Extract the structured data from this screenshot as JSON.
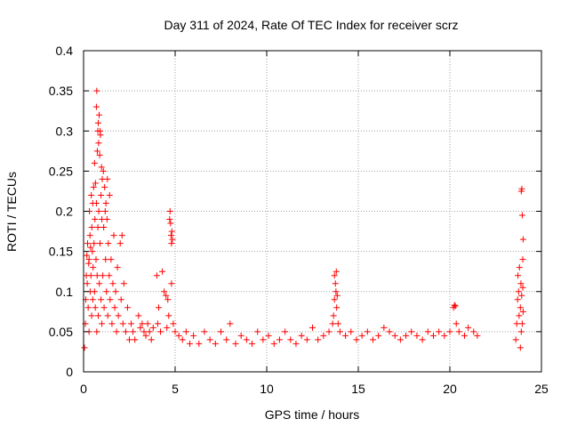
{
  "chart_data": {
    "type": "scatter",
    "title": "Day 311 of 2024, Rate Of TEC Index for receiver scrz",
    "xlabel": "GPS time / hours",
    "ylabel": "ROTI / TECUs",
    "xlim": [
      0,
      25
    ],
    "ylim": [
      0,
      0.4
    ],
    "xticks": [
      0,
      5,
      10,
      15,
      20,
      25
    ],
    "xtick_labels": [
      "0",
      "5",
      "10",
      "15",
      "20",
      "25"
    ],
    "yticks": [
      0,
      0.05,
      0.1,
      0.15,
      0.2,
      0.25,
      0.3,
      0.35,
      0.4
    ],
    "ytick_labels": [
      "0",
      "0.05",
      "0.1",
      "0.15",
      "0.2",
      "0.25",
      "0.3",
      "0.35",
      "0.4"
    ],
    "grid": true,
    "marker": "+",
    "marker_color": "#ff0000",
    "series": [
      {
        "name": "ROTI",
        "points": [
          [
            0.05,
            0.03
          ],
          [
            0.1,
            0.06
          ],
          [
            0.12,
            0.09
          ],
          [
            0.15,
            0.12
          ],
          [
            0.18,
            0.145
          ],
          [
            0.2,
            0.11
          ],
          [
            0.22,
            0.16
          ],
          [
            0.25,
            0.08
          ],
          [
            0.28,
            0.135
          ],
          [
            0.3,
            0.05
          ],
          [
            0.3,
            0.14
          ],
          [
            0.32,
            0.2
          ],
          [
            0.35,
            0.17
          ],
          [
            0.36,
            0.1
          ],
          [
            0.38,
            0.155
          ],
          [
            0.4,
            0.12
          ],
          [
            0.42,
            0.22
          ],
          [
            0.44,
            0.07
          ],
          [
            0.45,
            0.18
          ],
          [
            0.48,
            0.15
          ],
          [
            0.5,
            0.21
          ],
          [
            0.5,
            0.09
          ],
          [
            0.52,
            0.13
          ],
          [
            0.55,
            0.23
          ],
          [
            0.57,
            0.16
          ],
          [
            0.6,
            0.1
          ],
          [
            0.6,
            0.26
          ],
          [
            0.62,
            0.19
          ],
          [
            0.64,
            0.08
          ],
          [
            0.65,
            0.235
          ],
          [
            0.68,
            0.14
          ],
          [
            0.7,
            0.33
          ],
          [
            0.7,
            0.21
          ],
          [
            0.72,
            0.05
          ],
          [
            0.72,
            0.35
          ],
          [
            0.74,
            0.12
          ],
          [
            0.75,
            0.275
          ],
          [
            0.78,
            0.3
          ],
          [
            0.78,
            0.18
          ],
          [
            0.8,
            0.31
          ],
          [
            0.8,
            0.07
          ],
          [
            0.82,
            0.285
          ],
          [
            0.83,
            0.2
          ],
          [
            0.85,
            0.32
          ],
          [
            0.86,
            0.11
          ],
          [
            0.88,
            0.27
          ],
          [
            0.9,
            0.3
          ],
          [
            0.9,
            0.16
          ],
          [
            0.92,
            0.295
          ],
          [
            0.95,
            0.22
          ],
          [
            0.95,
            0.09
          ],
          [
            0.98,
            0.255
          ],
          [
            1.0,
            0.19
          ],
          [
            1.0,
            0.06
          ],
          [
            1.02,
            0.24
          ],
          [
            1.05,
            0.12
          ],
          [
            1.08,
            0.25
          ],
          [
            1.1,
            0.18
          ],
          [
            1.12,
            0.08
          ],
          [
            1.15,
            0.23
          ],
          [
            1.18,
            0.2
          ],
          [
            1.2,
            0.14
          ],
          [
            1.22,
            0.21
          ],
          [
            1.25,
            0.1
          ],
          [
            1.28,
            0.19
          ],
          [
            1.3,
            0.24
          ],
          [
            1.32,
            0.07
          ],
          [
            1.35,
            0.16
          ],
          [
            1.4,
            0.12
          ],
          [
            1.42,
            0.22
          ],
          [
            1.45,
            0.09
          ],
          [
            1.5,
            0.14
          ],
          [
            1.55,
            0.06
          ],
          [
            1.6,
            0.11
          ],
          [
            1.65,
            0.17
          ],
          [
            1.7,
            0.08
          ],
          [
            1.75,
            0.1
          ],
          [
            1.8,
            0.05
          ],
          [
            1.85,
            0.13
          ],
          [
            1.9,
            0.07
          ],
          [
            2.0,
            0.16
          ],
          [
            2.05,
            0.09
          ],
          [
            2.1,
            0.17
          ],
          [
            2.15,
            0.06
          ],
          [
            2.2,
            0.11
          ],
          [
            2.3,
            0.05
          ],
          [
            2.4,
            0.08
          ],
          [
            2.5,
            0.04
          ],
          [
            2.6,
            0.06
          ],
          [
            2.7,
            0.05
          ],
          [
            2.8,
            0.04
          ],
          [
            3.0,
            0.07
          ],
          [
            3.1,
            0.055
          ],
          [
            3.2,
            0.06
          ],
          [
            3.3,
            0.05
          ],
          [
            3.4,
            0.045
          ],
          [
            3.5,
            0.06
          ],
          [
            3.6,
            0.05
          ],
          [
            3.7,
            0.04
          ],
          [
            3.8,
            0.055
          ],
          [
            4.0,
            0.12
          ],
          [
            4.05,
            0.06
          ],
          [
            4.1,
            0.08
          ],
          [
            4.2,
            0.05
          ],
          [
            4.3,
            0.125
          ],
          [
            4.4,
            0.1
          ],
          [
            4.5,
            0.095
          ],
          [
            4.55,
            0.055
          ],
          [
            4.6,
            0.09
          ],
          [
            4.65,
            0.07
          ],
          [
            4.7,
            0.19
          ],
          [
            4.72,
            0.2
          ],
          [
            4.75,
            0.185
          ],
          [
            4.78,
            0.17
          ],
          [
            4.8,
            0.16
          ],
          [
            4.82,
            0.175
          ],
          [
            4.85,
            0.165
          ],
          [
            4.8,
            0.11
          ],
          [
            4.9,
            0.06
          ],
          [
            5.0,
            0.05
          ],
          [
            5.2,
            0.045
          ],
          [
            5.4,
            0.04
          ],
          [
            5.6,
            0.05
          ],
          [
            5.8,
            0.035
          ],
          [
            6.0,
            0.045
          ],
          [
            6.3,
            0.035
          ],
          [
            6.6,
            0.05
          ],
          [
            6.9,
            0.04
          ],
          [
            7.2,
            0.035
          ],
          [
            7.5,
            0.05
          ],
          [
            7.8,
            0.04
          ],
          [
            8.0,
            0.06
          ],
          [
            8.3,
            0.035
          ],
          [
            8.6,
            0.045
          ],
          [
            8.9,
            0.04
          ],
          [
            9.2,
            0.035
          ],
          [
            9.5,
            0.05
          ],
          [
            9.8,
            0.04
          ],
          [
            10.1,
            0.045
          ],
          [
            10.4,
            0.035
          ],
          [
            10.7,
            0.04
          ],
          [
            11.0,
            0.05
          ],
          [
            11.3,
            0.04
          ],
          [
            11.6,
            0.035
          ],
          [
            11.9,
            0.045
          ],
          [
            12.2,
            0.04
          ],
          [
            12.5,
            0.055
          ],
          [
            12.8,
            0.04
          ],
          [
            13.1,
            0.045
          ],
          [
            13.4,
            0.05
          ],
          [
            13.6,
            0.06
          ],
          [
            13.65,
            0.07
          ],
          [
            13.7,
            0.09
          ],
          [
            13.7,
            0.12
          ],
          [
            13.75,
            0.11
          ],
          [
            13.78,
            0.1
          ],
          [
            13.8,
            0.125
          ],
          [
            13.82,
            0.08
          ],
          [
            13.85,
            0.095
          ],
          [
            13.9,
            0.06
          ],
          [
            14.0,
            0.05
          ],
          [
            14.3,
            0.045
          ],
          [
            14.6,
            0.05
          ],
          [
            14.9,
            0.04
          ],
          [
            15.2,
            0.045
          ],
          [
            15.5,
            0.05
          ],
          [
            15.8,
            0.04
          ],
          [
            16.1,
            0.045
          ],
          [
            16.4,
            0.055
          ],
          [
            16.7,
            0.05
          ],
          [
            17.0,
            0.045
          ],
          [
            17.3,
            0.04
          ],
          [
            17.6,
            0.045
          ],
          [
            17.9,
            0.05
          ],
          [
            18.2,
            0.045
          ],
          [
            18.5,
            0.04
          ],
          [
            18.8,
            0.05
          ],
          [
            19.1,
            0.045
          ],
          [
            19.4,
            0.05
          ],
          [
            19.7,
            0.045
          ],
          [
            20.0,
            0.05
          ],
          [
            20.2,
            0.08
          ],
          [
            20.25,
            0.083
          ],
          [
            20.3,
            0.082
          ],
          [
            20.35,
            0.06
          ],
          [
            20.5,
            0.05
          ],
          [
            20.8,
            0.045
          ],
          [
            21.0,
            0.055
          ],
          [
            21.3,
            0.05
          ],
          [
            21.5,
            0.045
          ],
          [
            23.6,
            0.04
          ],
          [
            23.65,
            0.06
          ],
          [
            23.7,
            0.09
          ],
          [
            23.72,
            0.12
          ],
          [
            23.75,
            0.1
          ],
          [
            23.78,
            0.07
          ],
          [
            23.8,
            0.13
          ],
          [
            23.85,
            0.08
          ],
          [
            23.88,
            0.11
          ],
          [
            23.9,
            0.05
          ],
          [
            23.92,
            0.095
          ],
          [
            23.95,
            0.06
          ],
          [
            23.98,
            0.14
          ],
          [
            24.0,
            0.165
          ],
          [
            23.95,
            0.195
          ],
          [
            23.9,
            0.225
          ],
          [
            23.93,
            0.228
          ],
          [
            23.98,
            0.105
          ],
          [
            24.0,
            0.075
          ],
          [
            23.85,
            0.03
          ]
        ]
      }
    ]
  }
}
